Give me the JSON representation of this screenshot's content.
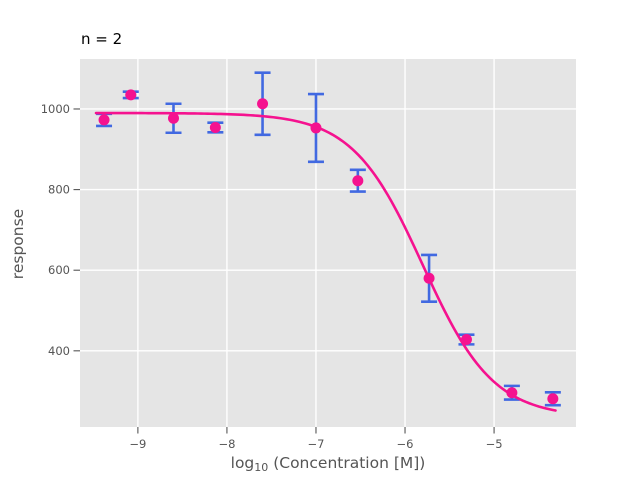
{
  "header": {
    "title": "n = 2"
  },
  "axes": {
    "xlabel_prefix": "log",
    "xlabel_sub": "10",
    "xlabel_suffix": " (Concentration [M])",
    "ylabel": "response"
  },
  "chart_data": {
    "type": "scatter",
    "title": "n = 2",
    "xlabel": "log10 (Concentration [M])",
    "ylabel": "response",
    "xlim": [
      -9.65,
      -4.08
    ],
    "ylim": [
      211,
      1124
    ],
    "grid": true,
    "legend_position": "none",
    "panel_bg": "#e5e5e5",
    "grid_color": "#ffffff",
    "tick_color": "#555555",
    "marker_color": "#f5128f",
    "errorbar_color": "#4169e1",
    "curve_color": "#f5128f",
    "x_ticks": [
      {
        "value": -9,
        "label": "−9"
      },
      {
        "value": -8,
        "label": "−8"
      },
      {
        "value": -7,
        "label": "−7"
      },
      {
        "value": -6,
        "label": "−6"
      },
      {
        "value": -5,
        "label": "−5"
      }
    ],
    "y_ticks": [
      {
        "value": 400,
        "label": "400"
      },
      {
        "value": 600,
        "label": "600"
      },
      {
        "value": 800,
        "label": "800"
      },
      {
        "value": 1000,
        "label": "1000"
      }
    ],
    "points": [
      {
        "x": -9.38,
        "y": 973,
        "err": 15
      },
      {
        "x": -9.08,
        "y": 1035,
        "err": 8
      },
      {
        "x": -8.6,
        "y": 977,
        "err": 36
      },
      {
        "x": -8.13,
        "y": 954,
        "err": 12
      },
      {
        "x": -7.6,
        "y": 1013,
        "err": 77
      },
      {
        "x": -7.0,
        "y": 953,
        "err": 84
      },
      {
        "x": -6.53,
        "y": 822,
        "err": 27
      },
      {
        "x": -5.73,
        "y": 580,
        "err": 58
      },
      {
        "x": -5.31,
        "y": 428,
        "err": 12
      },
      {
        "x": -4.8,
        "y": 296,
        "err": 17
      },
      {
        "x": -4.34,
        "y": 281,
        "err": 16
      }
    ],
    "fit_curve": {
      "model": "4PL",
      "top": 990,
      "bottom": 235,
      "log_ec50": -5.8,
      "hill": 1.1,
      "x_start": -9.47,
      "x_end": -4.31
    }
  }
}
